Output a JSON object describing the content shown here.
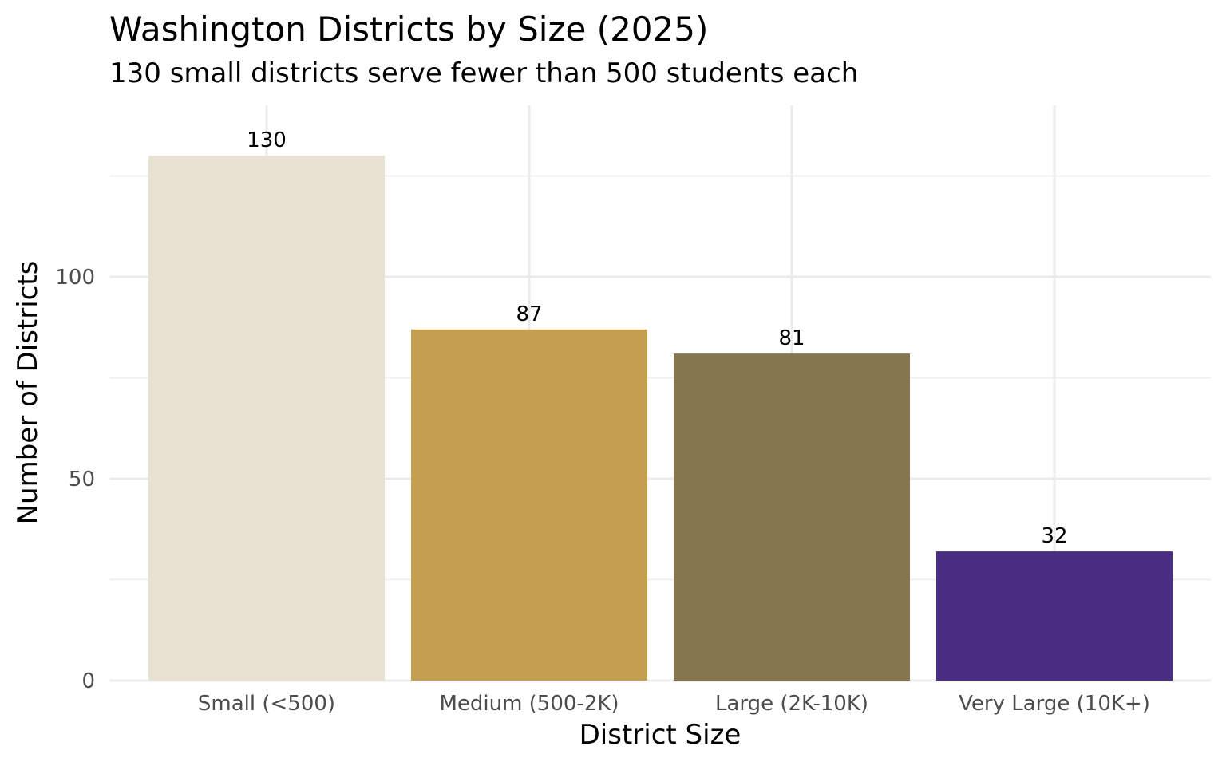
{
  "chart_data": {
    "type": "bar",
    "title": "Washington Districts by Size (2025)",
    "subtitle": "130 small districts serve fewer than 500 students each",
    "xlabel": "District Size",
    "ylabel": "Number of Districts",
    "categories": [
      "Small (<500)",
      "Medium (500-2K)",
      "Large (2K-10K)",
      "Very Large (10K+)"
    ],
    "values": [
      130,
      87,
      81,
      32
    ],
    "data_labels": [
      "130",
      "87",
      "81",
      "32"
    ],
    "colors": [
      "#e8e2d3",
      "#c49f52",
      "#85764e",
      "#4b2e83"
    ],
    "ylim": [
      0,
      142.5
    ],
    "y_ticks": [
      0,
      50,
      100
    ],
    "y_tick_labels": [
      "0",
      "50",
      "100"
    ],
    "grid": true,
    "gridline_color": "#ebebeb",
    "legend": "none"
  }
}
